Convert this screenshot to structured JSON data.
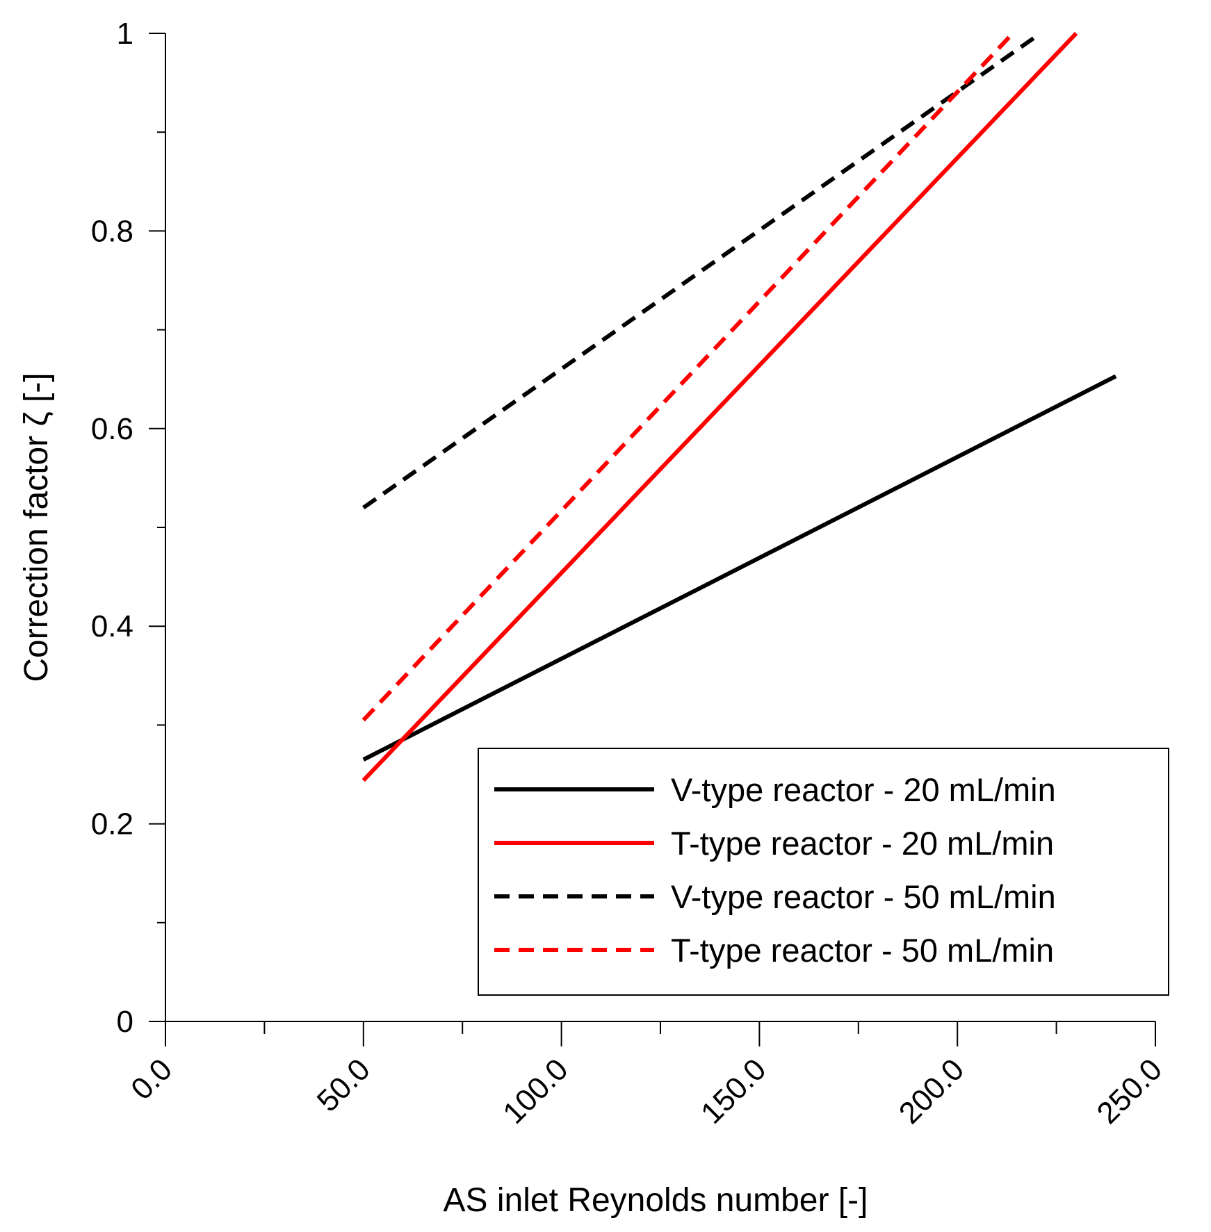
{
  "chart_data": {
    "type": "line",
    "xlabel": "AS inlet Reynolds number [-]",
    "ylabel": "Correction factor ζ [-]",
    "xlim": [
      0,
      250
    ],
    "ylim": [
      0,
      1
    ],
    "x_major_ticks": [
      0,
      50,
      100,
      150,
      200,
      250
    ],
    "x_tick_labels": [
      "0.0",
      "50.0",
      "100.0",
      "150.0",
      "200.0",
      "250.0"
    ],
    "x_minor_ticks": [
      25,
      75,
      125,
      175,
      225
    ],
    "y_major_ticks": [
      0,
      0.2,
      0.4,
      0.6,
      0.8,
      1
    ],
    "y_tick_labels": [
      "0",
      "0.2",
      "0.4",
      "0.6",
      "0.8",
      "1"
    ],
    "y_minor_ticks": [
      0.1,
      0.3,
      0.5,
      0.7,
      0.9
    ],
    "grid": false,
    "legend_position": "bottom-right",
    "series": [
      {
        "name": "V-type reactor - 20 mL/min",
        "color": "#000000",
        "style": "solid",
        "x": [
          50,
          240
        ],
        "y": [
          0.265,
          0.653
        ]
      },
      {
        "name": "T-type reactor - 20 mL/min",
        "color": "#ff0000",
        "style": "solid",
        "x": [
          50,
          230
        ],
        "y": [
          0.244,
          1.0
        ]
      },
      {
        "name": "V-type reactor - 50 mL/min",
        "color": "#000000",
        "style": "dashed",
        "x": [
          50,
          221
        ],
        "y": [
          0.52,
          1.0
        ]
      },
      {
        "name": "T-type reactor - 50 mL/min",
        "color": "#ff0000",
        "style": "dashed",
        "x": [
          50,
          214
        ],
        "y": [
          0.305,
          1.0
        ]
      }
    ]
  }
}
